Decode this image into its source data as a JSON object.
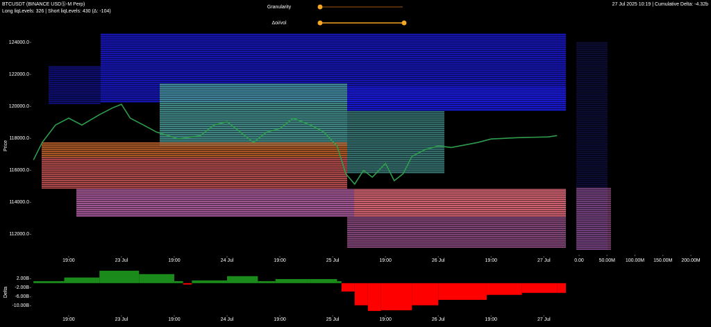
{
  "header": {
    "symbol": "BTCUSDT (BINANCE USDⓈ-M Perp)",
    "levels": "Long liqLevels: 326 | Short liqLevels: 430 (Δ: -104)",
    "status": "27 Jul 2025 10:19 | Cumulative Delta: -4.32b"
  },
  "controls": {
    "granularity": "Granularity",
    "oi_vol": "Δoi/vol"
  },
  "chart_data": [
    {
      "type": "line",
      "y_label": "Price",
      "color": "#2e9e4e",
      "x": [
        -8,
        -6,
        -3,
        0,
        3,
        7,
        10,
        12,
        14,
        17,
        20,
        25,
        30,
        33,
        36,
        39,
        42,
        45,
        48,
        51,
        55,
        58,
        61,
        63,
        65,
        67,
        69,
        72,
        74,
        76,
        78,
        81,
        84,
        87,
        93,
        96,
        102,
        109,
        111
      ],
      "values": [
        116650,
        117740,
        118830,
        119260,
        118830,
        119480,
        119910,
        120130,
        119260,
        118830,
        118390,
        117960,
        118170,
        118830,
        119040,
        118390,
        117740,
        118390,
        118610,
        119260,
        118830,
        118390,
        117520,
        115780,
        115130,
        116000,
        115570,
        116430,
        115350,
        115780,
        116870,
        117300,
        117520,
        117430,
        117740,
        117960,
        118040,
        118090,
        118170
      ],
      "xlim": [
        -8.5,
        113
      ],
      "ylim": [
        110800,
        124700
      ],
      "xticks": [
        {
          "value": 0,
          "label": "19:00"
        },
        {
          "value": 12,
          "label": "23 Jul"
        },
        {
          "value": 24,
          "label": "19:00"
        },
        {
          "value": 36,
          "label": "24 Jul"
        },
        {
          "value": 48,
          "label": "19:00"
        },
        {
          "value": 60,
          "label": "25 Jul"
        },
        {
          "value": 72,
          "label": "19:00"
        },
        {
          "value": 84,
          "label": "26 Jul"
        },
        {
          "value": 96,
          "label": "19:00"
        },
        {
          "value": 108,
          "label": "27 Jul"
        }
      ],
      "yticks": [
        {
          "value": 112000,
          "label": "112000.0"
        },
        {
          "value": 114000,
          "label": "114000.0"
        },
        {
          "value": 116000,
          "label": "116000.0"
        },
        {
          "value": 118000,
          "label": "118000.0"
        },
        {
          "value": 120000,
          "label": "120000.0"
        },
        {
          "value": 122000,
          "label": "122000.0"
        },
        {
          "value": 124000,
          "label": "124000.0"
        }
      ]
    },
    {
      "type": "profile-axis",
      "xlim": [
        -5000000,
        200000000
      ],
      "xticks": [
        {
          "value": 0,
          "label": "0.00"
        },
        {
          "value": 50000000,
          "label": "50.00M"
        },
        {
          "value": 100000000,
          "label": "100.00M"
        },
        {
          "value": 150000000,
          "label": "150.00M"
        },
        {
          "value": 200000000,
          "label": "200.00M"
        }
      ]
    },
    {
      "type": "bar",
      "y_label": "Delta",
      "positive_color": "#1a8a1a",
      "negative_color": "#ff0000",
      "x": [
        -8,
        -1,
        7,
        16,
        24,
        26,
        28,
        36,
        43,
        47,
        55,
        61,
        62,
        65,
        68,
        71,
        78,
        84,
        95,
        103,
        111
      ],
      "values": [
        900000000,
        2500000000,
        5500000000,
        4000000000,
        900000000,
        -600000000,
        1200000000,
        3100000000,
        900000000,
        1800000000,
        1800000000,
        900000000,
        -3700000000,
        -9800000000,
        -12300000000,
        -12000000000,
        -9800000000,
        -7400000000,
        -5200000000,
        -4300000000,
        -4300000000
      ],
      "xlim": [
        -8.5,
        113
      ],
      "ylim": [
        -14500000000,
        6100000000
      ],
      "xticks": [
        {
          "value": 0,
          "label": "19:00"
        },
        {
          "value": 12,
          "label": "23 Jul"
        },
        {
          "value": 24,
          "label": "19:00"
        },
        {
          "value": 36,
          "label": "24 Jul"
        },
        {
          "value": 48,
          "label": "19:00"
        },
        {
          "value": 60,
          "label": "25 Jul"
        },
        {
          "value": 72,
          "label": "19:00"
        },
        {
          "value": 84,
          "label": "26 Jul"
        },
        {
          "value": 96,
          "label": "19:00"
        },
        {
          "value": 108,
          "label": "27 Jul"
        }
      ],
      "yticks": [
        {
          "value": 2000000000,
          "label": "2.00B"
        },
        {
          "value": -2000000000,
          "label": "-2.00B"
        },
        {
          "value": -6000000000,
          "label": "-6.00B"
        },
        {
          "value": -10000000000,
          "label": "-10.00B"
        }
      ]
    }
  ]
}
